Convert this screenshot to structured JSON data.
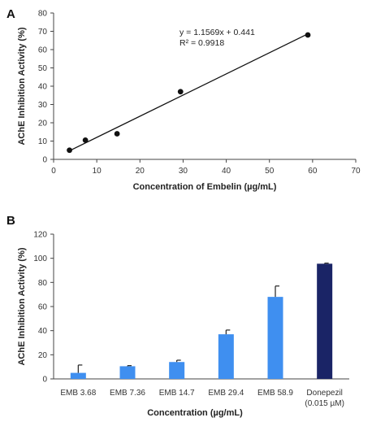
{
  "chart_data": [
    {
      "panel": "A",
      "type": "scatter",
      "xlabel": "Concentration of Embelin (µg/mL)",
      "ylabel": "AChE Inhibition Activity (%)",
      "xlim": [
        0,
        70
      ],
      "ylim": [
        0,
        80
      ],
      "xticks": [
        "0",
        "10",
        "20",
        "30",
        "40",
        "50",
        "60",
        "70"
      ],
      "yticks": [
        "0",
        "10",
        "20",
        "30",
        "40",
        "50",
        "60",
        "70",
        "80"
      ],
      "points": [
        {
          "x": 3.68,
          "y": 5
        },
        {
          "x": 7.36,
          "y": 10.5
        },
        {
          "x": 14.7,
          "y": 14
        },
        {
          "x": 29.4,
          "y": 37
        },
        {
          "x": 58.9,
          "y": 68
        }
      ],
      "trendline": {
        "slope": 1.1569,
        "intercept": 0.441,
        "x_range": [
          3.68,
          58.9
        ]
      },
      "equation": "y = 1.1569x + 0.441",
      "r2": "R² = 0.9918",
      "grid": false
    },
    {
      "panel": "B",
      "type": "bar",
      "xlabel": "Concentration (µg/mL)",
      "ylabel": "AChE Inhibition Activity (%)",
      "ylim": [
        0,
        120
      ],
      "yticks": [
        "0",
        "20",
        "40",
        "60",
        "80",
        "100",
        "120"
      ],
      "categories": [
        "EMB 3.68",
        "EMB 7.36",
        "EMB 14.7",
        "EMB 29.4",
        "EMB 58.9",
        "Donepezil"
      ],
      "category_sublabels": [
        "",
        "",
        "",
        "",
        "",
        "(0.015 µM)"
      ],
      "values": [
        5,
        10.5,
        14,
        37,
        68,
        95.5
      ],
      "errors": [
        6.5,
        0.5,
        1.5,
        3.5,
        9,
        0.5
      ],
      "colors": [
        "#3f8ff0",
        "#3f8ff0",
        "#3f8ff0",
        "#3f8ff0",
        "#3f8ff0",
        "#1a2466"
      ],
      "grid": false
    }
  ]
}
